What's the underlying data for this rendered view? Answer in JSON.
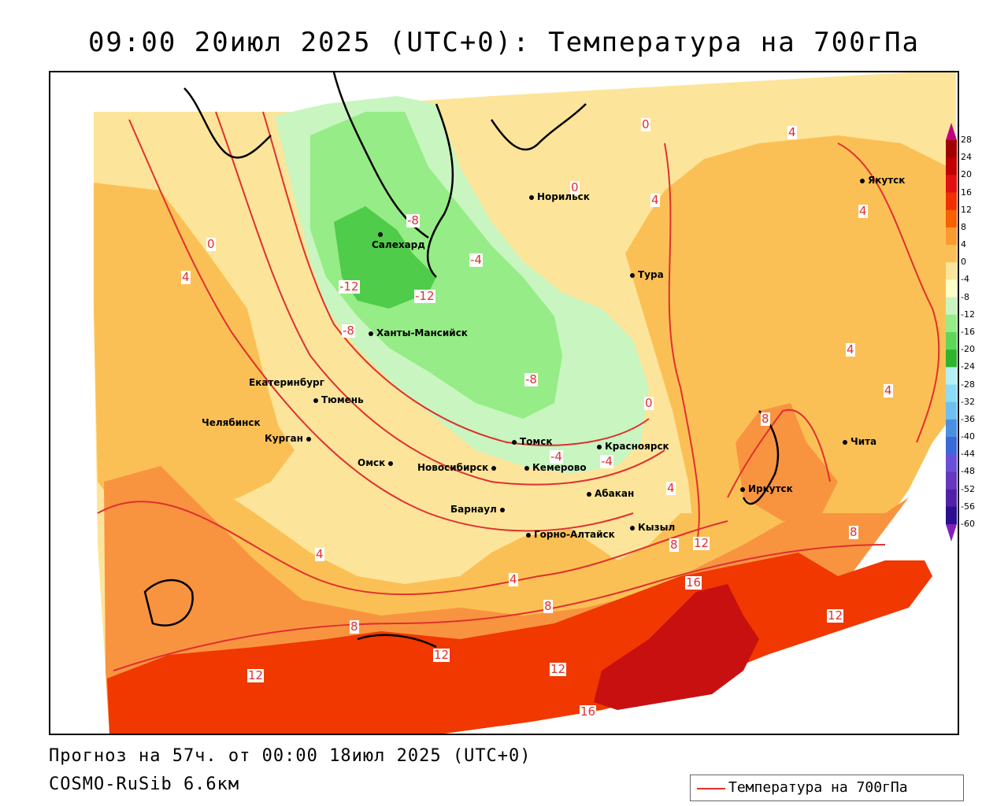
{
  "title": "09:00 20июл 2025 (UTC+0): Температура на 700гПа",
  "footer": {
    "forecast": "Прогноз на 57ч. от 00:00 18июл 2025 (UTC+0)",
    "model": "COSMO-RuSib 6.6км",
    "legend_label": "Температура на 700гПа",
    "legend_color": "#e03030"
  },
  "cities": [
    {
      "id": "yakutsk",
      "name": "Якутск"
    },
    {
      "id": "norilsk",
      "name": "Норильск"
    },
    {
      "id": "salekhard",
      "name": "Салехард"
    },
    {
      "id": "tura",
      "name": "Тура"
    },
    {
      "id": "khanty",
      "name": "Ханты-Мансийск"
    },
    {
      "id": "ekat",
      "name": "Екатеринбург"
    },
    {
      "id": "tyumen",
      "name": "Тюмень"
    },
    {
      "id": "chelyabinsk",
      "name": "Челябинск"
    },
    {
      "id": "kurgan",
      "name": "Курган"
    },
    {
      "id": "omsk",
      "name": "Омск"
    },
    {
      "id": "novosib",
      "name": "Новосибирск"
    },
    {
      "id": "tomsk",
      "name": "Томск"
    },
    {
      "id": "krasnoyarsk",
      "name": "Красноярск"
    },
    {
      "id": "kemerovo",
      "name": "Кемерово"
    },
    {
      "id": "abakan",
      "name": "Абакан"
    },
    {
      "id": "barnaul",
      "name": "Барнаул"
    },
    {
      "id": "irkutsk",
      "name": "Иркутск"
    },
    {
      "id": "chita",
      "name": "Чита"
    },
    {
      "id": "kyzyl",
      "name": "Кызыл"
    },
    {
      "id": "gornoaltaysk",
      "name": "Горно-Алтайск"
    }
  ],
  "contour_labels": [
    "0",
    "4",
    "0",
    "4",
    "-8",
    "-4",
    "0",
    "4",
    "-12",
    "-12",
    "-8",
    "4",
    "-8",
    "0",
    "4",
    "4",
    "-4",
    "-4",
    "8",
    "4",
    "8",
    "8",
    "12",
    "16",
    "4",
    "8",
    "12",
    "8",
    "12",
    "12",
    "12",
    "16",
    "4"
  ],
  "colorbar": {
    "ticks": [
      "28",
      "24",
      "20",
      "16",
      "12",
      "8",
      "4",
      "0",
      "-4",
      "-8",
      "-12",
      "-16",
      "-20",
      "-24",
      "-28",
      "-32",
      "-36",
      "-40",
      "-44",
      "-48",
      "-52",
      "-56",
      "-60"
    ],
    "colors": [
      "#a00000",
      "#c00000",
      "#e01010",
      "#f03000",
      "#f86000",
      "#fa9a30",
      "#fbc055",
      "#fce59a",
      "#ffffc8",
      "#c8f5c0",
      "#96ec86",
      "#5fd85a",
      "#2eb42e",
      "#b4f0f5",
      "#8cdcf5",
      "#6ec0f0",
      "#4a90e0",
      "#3a6ad8",
      "#6a50d8",
      "#6838c0",
      "#5020a8",
      "#2a1090"
    ]
  }
}
